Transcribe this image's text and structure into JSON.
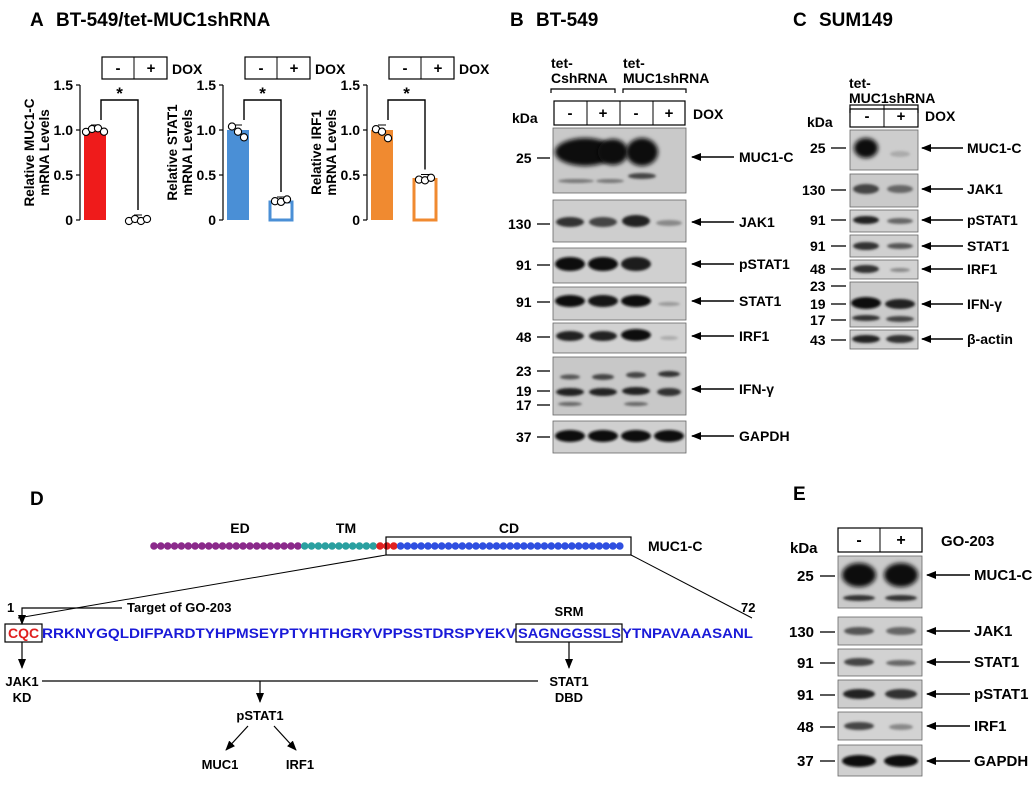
{
  "panelA": {
    "letter": "A",
    "title": "BT-549/tet-MUC1shRNA",
    "dox_minus": "-",
    "dox_plus": "+",
    "dox_label": "DOX",
    "star": "*",
    "ticks": [
      "1.5",
      "1.0",
      "0.5",
      "0"
    ],
    "ylabels": [
      {
        "line1": "Relative MUC1-C",
        "line2": "mRNA Levels"
      },
      {
        "line1": "Relative STAT1",
        "line2": "mRNA Levels"
      },
      {
        "line1": "Relative IRF1",
        "line2": "mRNA Levels"
      }
    ],
    "colors": {
      "muc1c": "#ef1b1b",
      "stat1": "#4a8fd6",
      "irf1": "#f08a30"
    }
  },
  "chart_data": [
    {
      "type": "bar",
      "categories": [
        "-",
        "+"
      ],
      "values": [
        1.0,
        0.0
      ],
      "ylabel": "Relative MUC1-C mRNA Levels",
      "ylim": [
        0,
        1.5
      ],
      "points": [
        [
          0.99,
          1.0,
          1.03,
          0.97
        ],
        [
          0.0,
          0.0,
          0.0,
          0.0
        ]
      ]
    },
    {
      "type": "bar",
      "categories": [
        "-",
        "+"
      ],
      "values": [
        1.0,
        0.2
      ],
      "ylabel": "Relative STAT1 mRNA Levels",
      "ylim": [
        0,
        1.5
      ],
      "points": [
        [
          1.05,
          0.97,
          0.93
        ],
        [
          0.22,
          0.19,
          0.24
        ]
      ]
    },
    {
      "type": "bar",
      "categories": [
        "-",
        "+"
      ],
      "values": [
        1.0,
        0.45
      ],
      "ylabel": "Relative IRF1 mRNA Levels",
      "ylim": [
        0,
        1.5
      ],
      "points": [
        [
          1.02,
          0.97,
          0.92
        ],
        [
          0.46,
          0.43,
          0.48
        ]
      ]
    }
  ],
  "panelB": {
    "letter": "B",
    "title": "BT-549",
    "group1_line1": "tet-",
    "group1_line2": "CshRNA",
    "group2_line1": "tet-",
    "group2_line2": "MUC1shRNA",
    "kda": "kDa",
    "lanes": [
      "-",
      "+",
      "-",
      "+"
    ],
    "dox": "DOX",
    "mw": [
      "25",
      "130",
      "91",
      "91",
      "48",
      "23",
      "19",
      "17",
      "37"
    ],
    "labels": [
      "MUC1-C",
      "JAK1",
      "pSTAT1",
      "STAT1",
      "IRF1",
      "IFN-γ",
      "GAPDH"
    ]
  },
  "panelC": {
    "letter": "C",
    "title": "SUM149",
    "group_line1": "tet-",
    "group_line2": "MUC1shRNA",
    "kda": "kDa",
    "lanes": [
      "-",
      "+"
    ],
    "dox": "DOX",
    "mw": [
      "25",
      "130",
      "91",
      "91",
      "48",
      "23",
      "19",
      "17",
      "43"
    ],
    "labels": [
      "MUC1-C",
      "JAK1",
      "pSTAT1",
      "STAT1",
      "IRF1",
      "IFN-γ",
      "β-actin"
    ]
  },
  "panelD": {
    "letter": "D",
    "domains": [
      "ED",
      "TM",
      "CD"
    ],
    "protein": "MUC1-C",
    "pos_start": "1",
    "pos_end": "72",
    "target_label": "Target of GO-203",
    "seq_red": "CQC",
    "seq_a": "RRKNYGQLDIFPARDTYHPMSEYPTYHTHGRYVPPSSTDRSPYEKV",
    "seq_srm": "SAGNGGSSLS",
    "seq_b": "YTNPAVAAASANL",
    "srm_label": "SRM",
    "jak1_line1": "JAK1",
    "jak1_line2": "KD",
    "stat1_line1": "STAT1",
    "stat1_line2": "DBD",
    "pstat1": "pSTAT1",
    "out1": "MUC1",
    "out2": "IRF1",
    "colors": {
      "ed": "#8b2a8b",
      "tm": "#2aa0a0",
      "cd": "#2f4fe0",
      "red": "#e02020",
      "blue": "#1a1ad8"
    }
  },
  "panelE": {
    "letter": "E",
    "kda": "kDa",
    "lanes": [
      "-",
      "+"
    ],
    "treatment": "GO-203",
    "mw": [
      "25",
      "130",
      "91",
      "91",
      "48",
      "37"
    ],
    "labels": [
      "MUC1-C",
      "JAK1",
      "STAT1",
      "pSTAT1",
      "IRF1",
      "GAPDH"
    ]
  }
}
